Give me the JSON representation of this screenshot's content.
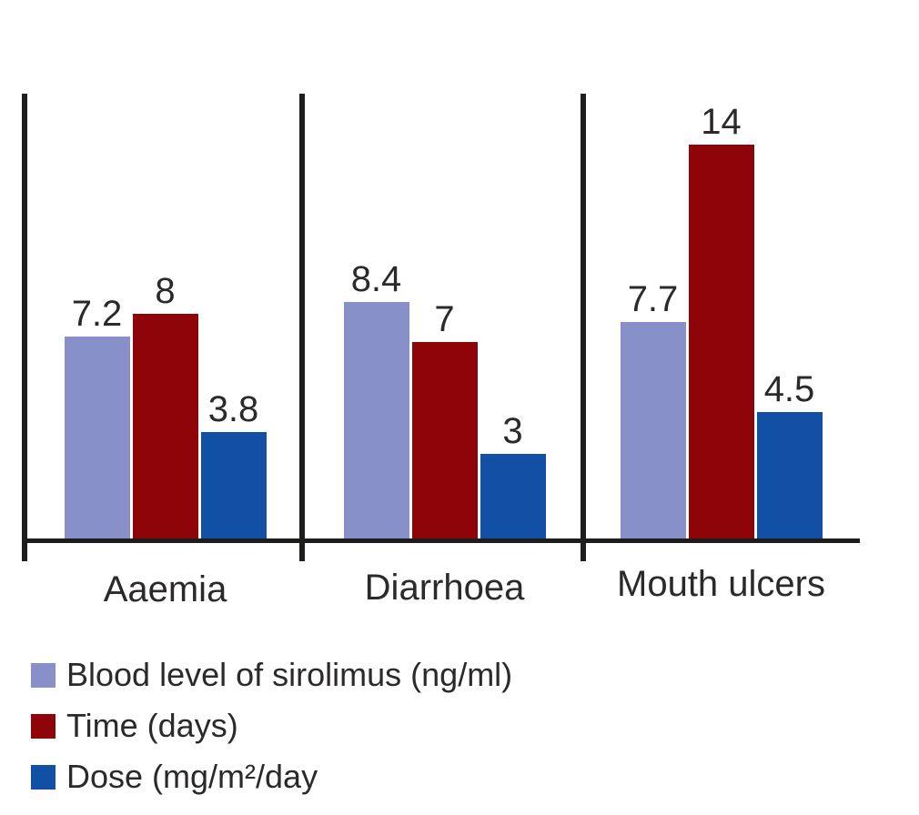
{
  "chart_data": {
    "type": "bar",
    "title": "",
    "xlabel": "",
    "ylabel": "",
    "categories": [
      "Aaemia",
      "Diarrhoea",
      "Mouth ulcers"
    ],
    "series": [
      {
        "name": "Blood level of sirolimus (ng/ml)",
        "color": "#8790c8",
        "values": [
          7.2,
          8.4,
          7.7
        ],
        "labels": [
          "7.2",
          "8.4",
          "7.7"
        ]
      },
      {
        "name": "Time (days)",
        "color": "#8e0408",
        "values": [
          8,
          7,
          14
        ],
        "labels": [
          "8",
          "7",
          "14"
        ]
      },
      {
        "name": "Dose (mg/m²/day",
        "color": "#1150a5",
        "values": [
          3.8,
          3,
          4.5
        ],
        "labels": [
          "3.8",
          "3",
          "4.5"
        ]
      }
    ],
    "ylim": [
      0,
      16.2
    ],
    "grid": false,
    "legend_position": "bottom-left",
    "colors": {
      "axis": "#201e1c",
      "text": "#2c292a"
    }
  }
}
